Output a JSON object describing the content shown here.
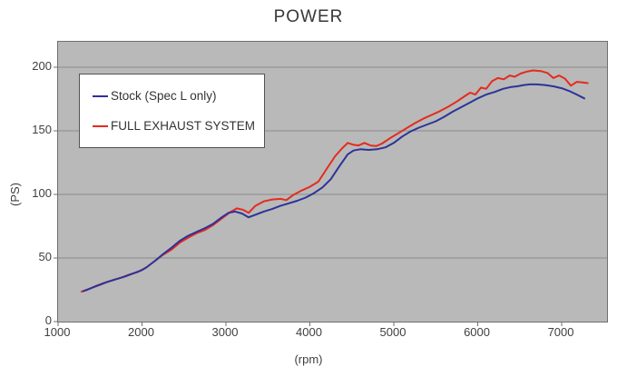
{
  "title": "POWER",
  "axes": {
    "y_label": "(PS)",
    "x_label": "(rpm)"
  },
  "colors": {
    "plot_background": "#b9b9b9",
    "gridline": "#8a8a8a",
    "plot_border": "#6f6f6f",
    "tick": "#6f6f6f",
    "text": "#3f3f3f",
    "stock_blue": "#2c3399",
    "exhaust_red": "#e42b1e"
  },
  "chart_data": {
    "type": "line",
    "title": "POWER",
    "xlabel": "(rpm)",
    "ylabel": "(PS)",
    "xlim": [
      1000,
      7540
    ],
    "ylim": [
      0,
      220
    ],
    "x_ticks": [
      1000,
      2000,
      3000,
      4000,
      5000,
      6000,
      7000
    ],
    "y_ticks": [
      0,
      50,
      100,
      150,
      200
    ],
    "grid": "horizontal",
    "legend_position": "top-left-inside",
    "series": [
      {
        "name": "Stock (Spec L only)",
        "color": "#2c3399",
        "points": [
          [
            1300,
            24
          ],
          [
            1400,
            26.5
          ],
          [
            1500,
            29
          ],
          [
            1600,
            31.5
          ],
          [
            1700,
            33.5
          ],
          [
            1800,
            35.5
          ],
          [
            1900,
            38
          ],
          [
            2000,
            40.5
          ],
          [
            2050,
            42.5
          ],
          [
            2150,
            47.5
          ],
          [
            2250,
            53
          ],
          [
            2350,
            58
          ],
          [
            2450,
            63.5
          ],
          [
            2550,
            67.5
          ],
          [
            2650,
            70.5
          ],
          [
            2750,
            73.5
          ],
          [
            2850,
            77
          ],
          [
            2950,
            82
          ],
          [
            3030,
            85.5
          ],
          [
            3110,
            86.5
          ],
          [
            3190,
            85
          ],
          [
            3270,
            82
          ],
          [
            3350,
            84
          ],
          [
            3450,
            86.5
          ],
          [
            3550,
            88.5
          ],
          [
            3650,
            91
          ],
          [
            3750,
            93
          ],
          [
            3850,
            95
          ],
          [
            3950,
            97.5
          ],
          [
            4050,
            101
          ],
          [
            4150,
            105.5
          ],
          [
            4250,
            112
          ],
          [
            4350,
            122
          ],
          [
            4450,
            131.5
          ],
          [
            4520,
            134.5
          ],
          [
            4600,
            135.5
          ],
          [
            4700,
            135
          ],
          [
            4800,
            135.5
          ],
          [
            4900,
            137
          ],
          [
            5000,
            140.5
          ],
          [
            5100,
            145.5
          ],
          [
            5200,
            149.5
          ],
          [
            5300,
            152.5
          ],
          [
            5400,
            155
          ],
          [
            5500,
            157.5
          ],
          [
            5600,
            161
          ],
          [
            5700,
            165
          ],
          [
            5800,
            168.5
          ],
          [
            5900,
            172
          ],
          [
            6000,
            175.5
          ],
          [
            6100,
            178.5
          ],
          [
            6200,
            180.5
          ],
          [
            6300,
            183
          ],
          [
            6400,
            184.5
          ],
          [
            6470,
            185
          ],
          [
            6550,
            186
          ],
          [
            6620,
            186.5
          ],
          [
            6700,
            186.5
          ],
          [
            6800,
            186
          ],
          [
            6900,
            185
          ],
          [
            7000,
            183.5
          ],
          [
            7100,
            181
          ],
          [
            7180,
            178.5
          ],
          [
            7270,
            175.5
          ]
        ]
      },
      {
        "name": "FULL EXHAUST SYSTEM",
        "color": "#e42b1e",
        "points": [
          [
            1280,
            23.5
          ],
          [
            1350,
            25
          ],
          [
            1450,
            28
          ],
          [
            1550,
            30.5
          ],
          [
            1650,
            32.5
          ],
          [
            1750,
            34.5
          ],
          [
            1850,
            37
          ],
          [
            1950,
            39
          ],
          [
            2050,
            42.5
          ],
          [
            2150,
            47.5
          ],
          [
            2250,
            52.5
          ],
          [
            2350,
            56.5
          ],
          [
            2450,
            62
          ],
          [
            2550,
            66
          ],
          [
            2650,
            69.5
          ],
          [
            2750,
            72
          ],
          [
            2850,
            76
          ],
          [
            2950,
            81
          ],
          [
            3050,
            86
          ],
          [
            3130,
            89
          ],
          [
            3200,
            88
          ],
          [
            3270,
            85.5
          ],
          [
            3350,
            91
          ],
          [
            3450,
            94.5
          ],
          [
            3550,
            96
          ],
          [
            3650,
            96.5
          ],
          [
            3720,
            95.5
          ],
          [
            3800,
            99.5
          ],
          [
            3900,
            103
          ],
          [
            4000,
            106
          ],
          [
            4100,
            110
          ],
          [
            4200,
            120
          ],
          [
            4300,
            130
          ],
          [
            4380,
            136
          ],
          [
            4450,
            140.5
          ],
          [
            4520,
            139
          ],
          [
            4580,
            138.5
          ],
          [
            4650,
            140.5
          ],
          [
            4720,
            138.5
          ],
          [
            4790,
            138
          ],
          [
            4860,
            140
          ],
          [
            4950,
            144
          ],
          [
            5050,
            148
          ],
          [
            5150,
            152
          ],
          [
            5250,
            156
          ],
          [
            5350,
            159.5
          ],
          [
            5450,
            162.5
          ],
          [
            5550,
            165.5
          ],
          [
            5650,
            169
          ],
          [
            5750,
            173
          ],
          [
            5850,
            177.5
          ],
          [
            5910,
            180
          ],
          [
            5970,
            178.5
          ],
          [
            6040,
            184
          ],
          [
            6100,
            183
          ],
          [
            6170,
            189
          ],
          [
            6240,
            191.5
          ],
          [
            6310,
            190.5
          ],
          [
            6380,
            193.5
          ],
          [
            6440,
            192.5
          ],
          [
            6510,
            195
          ],
          [
            6580,
            196.5
          ],
          [
            6660,
            197.5
          ],
          [
            6750,
            197
          ],
          [
            6830,
            195.5
          ],
          [
            6900,
            191.5
          ],
          [
            6970,
            193.5
          ],
          [
            7040,
            191
          ],
          [
            7110,
            185.5
          ],
          [
            7180,
            188.5
          ],
          [
            7250,
            188
          ],
          [
            7310,
            187.5
          ]
        ]
      }
    ]
  }
}
